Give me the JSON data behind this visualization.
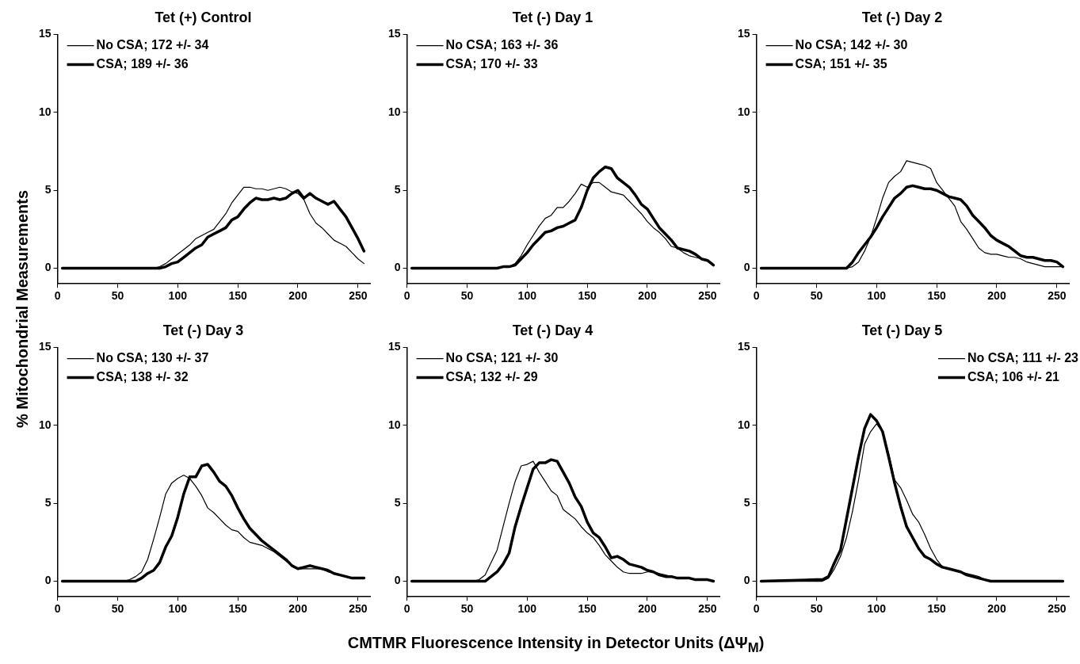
{
  "chart_data": [
    {
      "type": "line",
      "title": "Tet (+) Control",
      "ylabel": "% Mitochondrial Measurements",
      "x": [
        4,
        50,
        55,
        60,
        65,
        70,
        75,
        80,
        85,
        90,
        95,
        100,
        105,
        110,
        115,
        120,
        125,
        130,
        135,
        140,
        145,
        150,
        155,
        160,
        165,
        170,
        175,
        180,
        185,
        190,
        195,
        200,
        205,
        210,
        215,
        220,
        225,
        230,
        235,
        240,
        245,
        250,
        255
      ],
      "xlim": [
        0,
        260
      ],
      "ylim": [
        -1,
        15
      ],
      "xticks": [
        0,
        50,
        100,
        150,
        200,
        250
      ],
      "yticks": [
        0,
        5,
        10,
        15
      ],
      "legend": "top left",
      "grid": false,
      "series": [
        {
          "name": "No CSA; 172 +/- 34",
          "color": "#000000",
          "values": [
            0,
            0,
            0,
            0,
            0,
            0,
            0,
            0,
            0.1,
            0.3,
            0.6,
            0.9,
            1.2,
            1.5,
            1.9,
            2.1,
            2.3,
            2.5,
            3.0,
            3.5,
            4.2,
            4.7,
            5.2,
            5.2,
            5.1,
            5.1,
            5.0,
            5.1,
            5.2,
            5.1,
            4.9,
            4.8,
            4.4,
            3.5,
            2.9,
            2.6,
            2.2,
            1.8,
            1.6,
            1.4,
            1.0,
            0.6,
            0.3
          ]
        },
        {
          "name": "CSA; 189 +/- 36",
          "color": "#000000",
          "values": [
            0,
            0,
            0,
            0,
            0,
            0,
            0,
            0,
            0,
            0.1,
            0.3,
            0.4,
            0.7,
            1.0,
            1.3,
            1.5,
            2.0,
            2.2,
            2.4,
            2.6,
            3.1,
            3.3,
            3.8,
            4.2,
            4.5,
            4.4,
            4.4,
            4.5,
            4.4,
            4.5,
            4.8,
            5.0,
            4.5,
            4.8,
            4.5,
            4.3,
            4.1,
            4.3,
            3.8,
            3.3,
            2.6,
            1.9,
            1.1
          ]
        }
      ]
    },
    {
      "type": "line",
      "title": "Tet (-) Day 1",
      "x": [
        4,
        50,
        55,
        60,
        65,
        70,
        75,
        80,
        85,
        90,
        95,
        100,
        105,
        110,
        115,
        120,
        125,
        130,
        135,
        140,
        145,
        150,
        155,
        160,
        165,
        170,
        175,
        180,
        185,
        190,
        195,
        200,
        205,
        210,
        215,
        220,
        225,
        230,
        235,
        240,
        245,
        250,
        255
      ],
      "xlim": [
        0,
        260
      ],
      "ylim": [
        -1,
        15
      ],
      "xticks": [
        0,
        50,
        100,
        150,
        200,
        250
      ],
      "yticks": [
        0,
        5,
        10,
        15
      ],
      "legend": "top left",
      "grid": false,
      "series": [
        {
          "name": "No CSA; 163 +/- 36",
          "color": "#000000",
          "values": [
            0,
            0,
            0,
            0,
            0,
            0,
            0,
            0.1,
            0.1,
            0.3,
            0.8,
            1.5,
            2.1,
            2.7,
            3.2,
            3.4,
            3.9,
            3.9,
            4.3,
            4.8,
            5.4,
            5.2,
            5.5,
            5.5,
            5.2,
            4.9,
            4.8,
            4.7,
            4.3,
            3.9,
            3.5,
            3.0,
            2.6,
            2.3,
            1.9,
            1.4,
            1.3,
            1.0,
            0.8,
            0.7,
            0.6,
            0.5,
            0.2
          ]
        },
        {
          "name": "CSA; 170 +/- 33",
          "color": "#000000",
          "values": [
            0,
            0,
            0,
            0,
            0,
            0,
            0,
            0.1,
            0.1,
            0.2,
            0.6,
            1.0,
            1.5,
            1.9,
            2.3,
            2.4,
            2.6,
            2.7,
            2.9,
            3.1,
            3.9,
            5.0,
            5.8,
            6.2,
            6.5,
            6.4,
            5.8,
            5.5,
            5.2,
            4.7,
            4.1,
            3.8,
            3.2,
            2.6,
            2.2,
            1.8,
            1.3,
            1.2,
            1.1,
            0.9,
            0.6,
            0.5,
            0.2
          ]
        }
      ]
    },
    {
      "type": "line",
      "title": "Tet (-) Day 2",
      "x": [
        4,
        50,
        55,
        60,
        65,
        70,
        75,
        80,
        85,
        90,
        95,
        100,
        105,
        110,
        115,
        120,
        125,
        130,
        135,
        140,
        145,
        150,
        155,
        160,
        165,
        170,
        175,
        180,
        185,
        190,
        195,
        200,
        205,
        210,
        215,
        220,
        225,
        230,
        235,
        240,
        245,
        250,
        255
      ],
      "xlim": [
        0,
        260
      ],
      "ylim": [
        -1,
        15
      ],
      "xticks": [
        0,
        50,
        100,
        150,
        200,
        250
      ],
      "yticks": [
        0,
        5,
        10,
        15
      ],
      "legend": "top left",
      "grid": false,
      "series": [
        {
          "name": "No CSA; 142 +/- 30",
          "color": "#000000",
          "values": [
            0,
            0,
            0,
            0,
            0,
            0,
            0,
            0.1,
            0.4,
            1.1,
            2.0,
            3.2,
            4.5,
            5.5,
            5.9,
            6.2,
            6.9,
            6.8,
            6.7,
            6.6,
            6.4,
            5.5,
            5.0,
            4.5,
            4.0,
            3.0,
            2.5,
            1.9,
            1.3,
            1.0,
            0.9,
            0.9,
            0.8,
            0.7,
            0.7,
            0.6,
            0.4,
            0.3,
            0.2,
            0.1,
            0.1,
            0.1,
            0.1
          ]
        },
        {
          "name": "CSA; 151 +/- 35",
          "color": "#000000",
          "values": [
            0,
            0,
            0,
            0,
            0,
            0,
            0,
            0.4,
            1.0,
            1.5,
            2.0,
            2.6,
            3.3,
            3.9,
            4.5,
            4.8,
            5.2,
            5.3,
            5.2,
            5.1,
            5.1,
            5.0,
            4.8,
            4.6,
            4.5,
            4.4,
            4.0,
            3.4,
            3.0,
            2.6,
            2.1,
            1.8,
            1.6,
            1.4,
            1.1,
            0.8,
            0.7,
            0.7,
            0.6,
            0.5,
            0.5,
            0.4,
            0.1
          ]
        }
      ]
    },
    {
      "type": "line",
      "title": "Tet (-) Day 3",
      "x": [
        4,
        50,
        55,
        60,
        65,
        70,
        75,
        80,
        85,
        90,
        95,
        100,
        105,
        110,
        115,
        120,
        125,
        130,
        135,
        140,
        145,
        150,
        155,
        160,
        165,
        170,
        175,
        180,
        185,
        190,
        195,
        200,
        205,
        210,
        215,
        220,
        225,
        230,
        235,
        240,
        245,
        250,
        255
      ],
      "xlim": [
        0,
        260
      ],
      "ylim": [
        -1,
        15
      ],
      "xticks": [
        0,
        50,
        100,
        150,
        200,
        250
      ],
      "yticks": [
        0,
        5,
        10,
        15
      ],
      "legend": "top left",
      "grid": false,
      "series": [
        {
          "name": "No CSA; 130 +/- 37",
          "color": "#000000",
          "values": [
            0,
            0,
            0,
            0.1,
            0.3,
            0.6,
            1.4,
            2.7,
            4.1,
            5.6,
            6.3,
            6.6,
            6.8,
            6.6,
            6.1,
            5.5,
            4.7,
            4.4,
            4.0,
            3.6,
            3.3,
            3.2,
            2.8,
            2.5,
            2.4,
            2.3,
            2.1,
            1.9,
            1.6,
            1.3,
            1.0,
            0.8,
            0.8,
            0.8,
            0.8,
            0.8,
            0.6,
            0.5,
            0.4,
            0.3,
            0.2,
            0.2,
            0.2
          ]
        },
        {
          "name": "CSA; 138 +/- 32",
          "color": "#000000",
          "values": [
            0,
            0,
            0,
            0,
            0,
            0.2,
            0.5,
            0.7,
            1.2,
            2.2,
            2.9,
            4.1,
            5.6,
            6.7,
            6.7,
            7.4,
            7.5,
            7.0,
            6.4,
            6.1,
            5.5,
            4.7,
            4.0,
            3.4,
            3.0,
            2.6,
            2.3,
            2.0,
            1.7,
            1.4,
            1.0,
            0.8,
            0.9,
            1.0,
            0.9,
            0.8,
            0.7,
            0.5,
            0.4,
            0.3,
            0.2,
            0.2,
            0.2
          ]
        }
      ]
    },
    {
      "type": "line",
      "title": "Tet (-) Day 4",
      "xlabel": "CMTMR Fluorescence Intensity in Detector Units (ΔΨ$_{M}$)",
      "x": [
        4,
        50,
        55,
        60,
        65,
        70,
        75,
        80,
        85,
        90,
        95,
        100,
        105,
        110,
        115,
        120,
        125,
        130,
        135,
        140,
        145,
        150,
        155,
        160,
        165,
        170,
        175,
        180,
        185,
        190,
        195,
        200,
        205,
        210,
        215,
        220,
        225,
        230,
        235,
        240,
        245,
        250,
        255
      ],
      "xlim": [
        0,
        260
      ],
      "ylim": [
        -1,
        15
      ],
      "xticks": [
        0,
        50,
        100,
        150,
        200,
        250
      ],
      "yticks": [
        0,
        5,
        10,
        15
      ],
      "legend": "top left",
      "grid": false,
      "series": [
        {
          "name": "No CSA; 121 +/- 30",
          "color": "#000000",
          "values": [
            0,
            0,
            0,
            0.1,
            0.4,
            1.2,
            2.0,
            3.5,
            5.0,
            6.4,
            7.4,
            7.5,
            7.7,
            7.0,
            6.4,
            5.8,
            5.5,
            4.6,
            4.3,
            4.0,
            3.5,
            3.1,
            2.8,
            2.3,
            1.7,
            1.3,
            0.9,
            0.6,
            0.5,
            0.5,
            0.5,
            0.6,
            0.6,
            0.5,
            0.4,
            0.3,
            0.2,
            0.2,
            0.2,
            0.1,
            0.1,
            0.1,
            0
          ]
        },
        {
          "name": "CSA; 132 +/- 29",
          "color": "#000000",
          "values": [
            0,
            0,
            0,
            0,
            0,
            0.3,
            0.6,
            1.1,
            1.8,
            3.5,
            4.8,
            6.0,
            7.2,
            7.6,
            7.6,
            7.8,
            7.7,
            7.0,
            6.3,
            5.4,
            4.8,
            3.8,
            3.1,
            2.8,
            2.2,
            1.5,
            1.6,
            1.4,
            1.1,
            1.0,
            0.9,
            0.7,
            0.6,
            0.4,
            0.3,
            0.3,
            0.2,
            0.2,
            0.2,
            0.1,
            0.1,
            0.1,
            0
          ]
        }
      ]
    },
    {
      "type": "line",
      "title": "Tet (-) Day 5",
      "x": [
        4,
        50,
        55,
        60,
        65,
        70,
        75,
        80,
        85,
        90,
        95,
        100,
        105,
        110,
        115,
        120,
        125,
        130,
        135,
        140,
        145,
        150,
        155,
        160,
        165,
        170,
        175,
        180,
        185,
        190,
        195,
        200,
        205,
        210,
        215,
        220,
        225,
        230,
        235,
        240,
        245,
        250,
        255
      ],
      "xlim": [
        0,
        260
      ],
      "ylim": [
        -1,
        15
      ],
      "xticks": [
        0,
        50,
        100,
        150,
        200,
        250
      ],
      "yticks": [
        0,
        5,
        10,
        15
      ],
      "legend": "top right",
      "grid": false,
      "series": [
        {
          "name": "No CSA; 111 +/- 23",
          "color": "#000000",
          "values": [
            0,
            0,
            0,
            0.2,
            0.8,
            1.6,
            2.8,
            4.5,
            6.5,
            8.8,
            9.6,
            10.1,
            9.6,
            8.2,
            6.5,
            6.0,
            5.2,
            4.3,
            3.8,
            3.0,
            2.1,
            1.4,
            0.9,
            0.8,
            0.7,
            0.6,
            0.5,
            0.4,
            0.3,
            0.1,
            0,
            0,
            0,
            0,
            0,
            0,
            0,
            0,
            0,
            0,
            0,
            0,
            0
          ]
        },
        {
          "name": "CSA; 106 +/- 21",
          "color": "#000000",
          "values": [
            0,
            0.1,
            0.1,
            0.3,
            1.2,
            2.0,
            4.0,
            6.0,
            8.0,
            9.8,
            10.7,
            10.3,
            9.6,
            8.0,
            6.3,
            4.8,
            3.5,
            2.8,
            2.1,
            1.6,
            1.4,
            1.1,
            0.9,
            0.8,
            0.7,
            0.6,
            0.4,
            0.3,
            0.2,
            0.1,
            0,
            0,
            0,
            0,
            0,
            0,
            0,
            0,
            0,
            0,
            0,
            0,
            0
          ]
        }
      ]
    }
  ]
}
